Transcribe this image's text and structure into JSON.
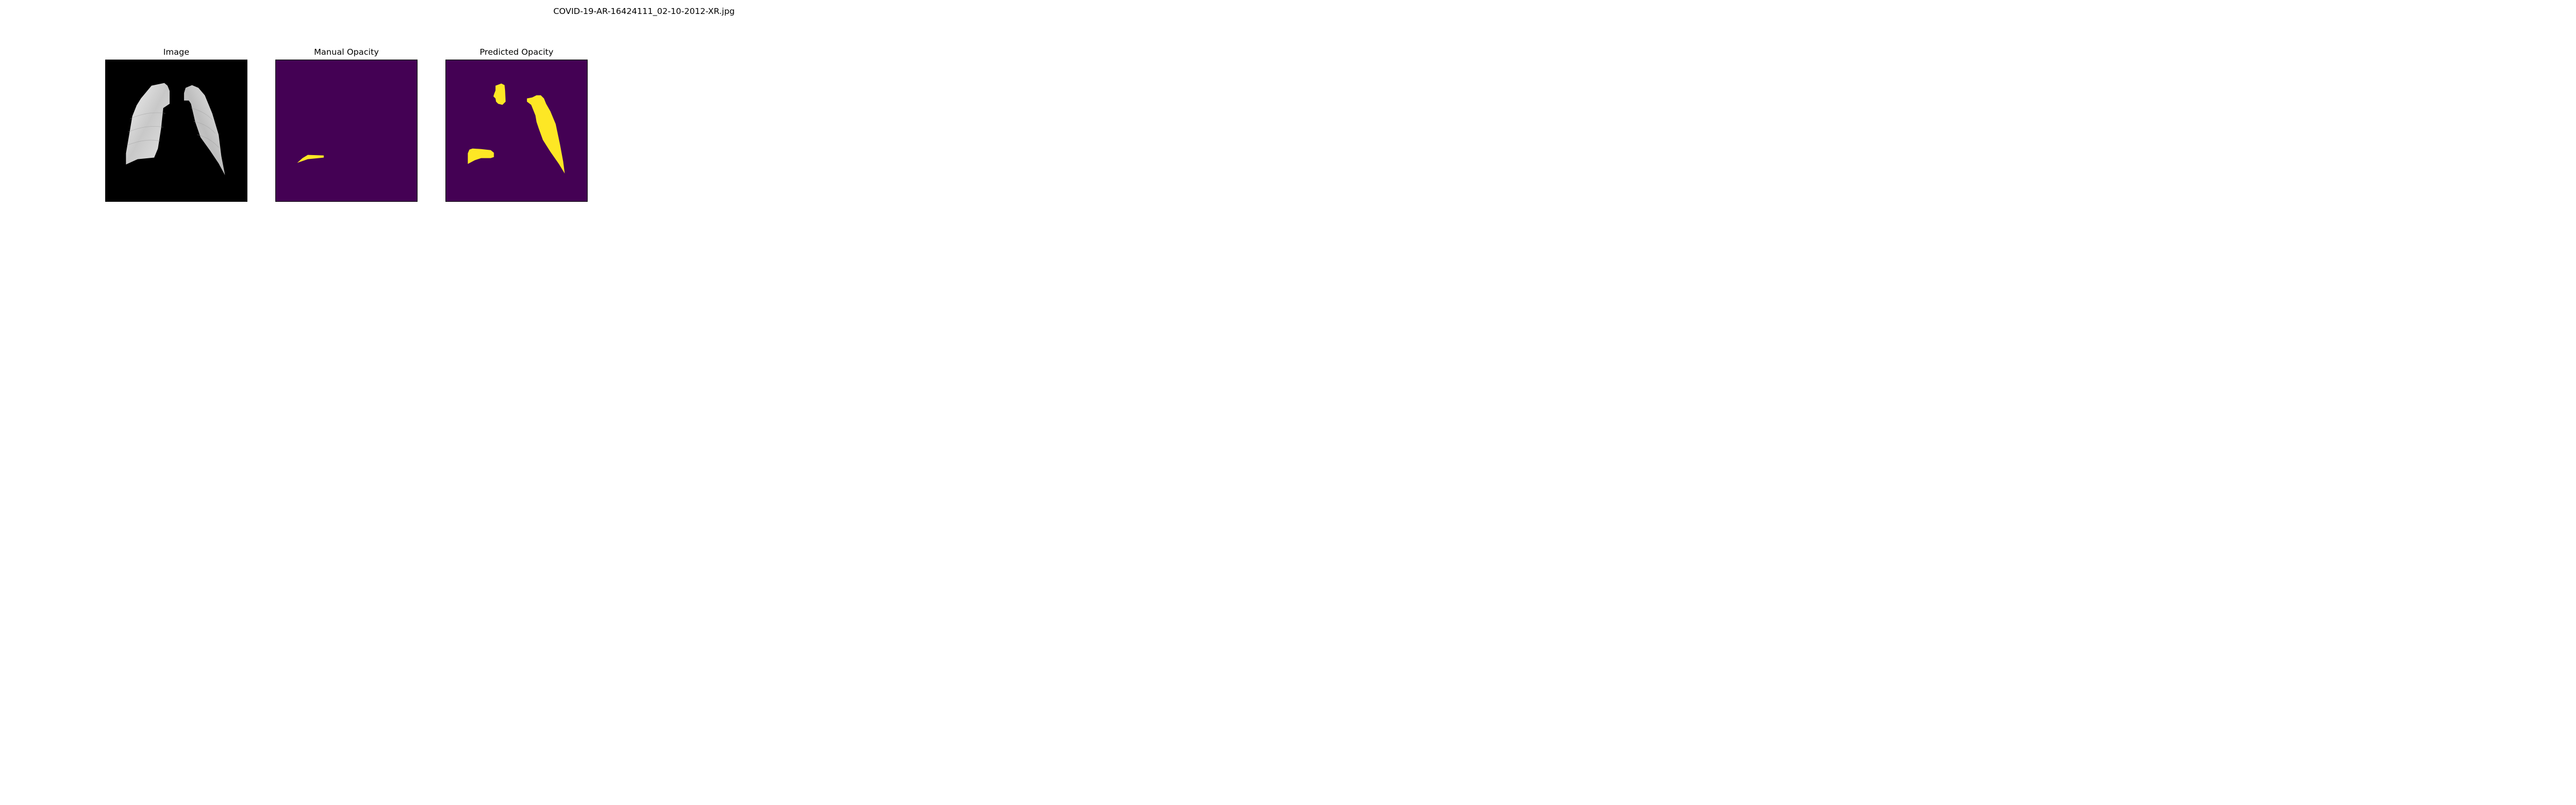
{
  "figure": {
    "suptitle": "COVID-19-AR-16424111_02-10-2012-XR.jpg"
  },
  "panels": [
    {
      "title": "Image"
    },
    {
      "title": "Manual Opacity"
    },
    {
      "title": "Predicted Opacity"
    }
  ],
  "colors": {
    "background": "#ffffff",
    "xray_background": "#000000",
    "mask_background": "#440154",
    "mask_foreground": "#fde725"
  }
}
